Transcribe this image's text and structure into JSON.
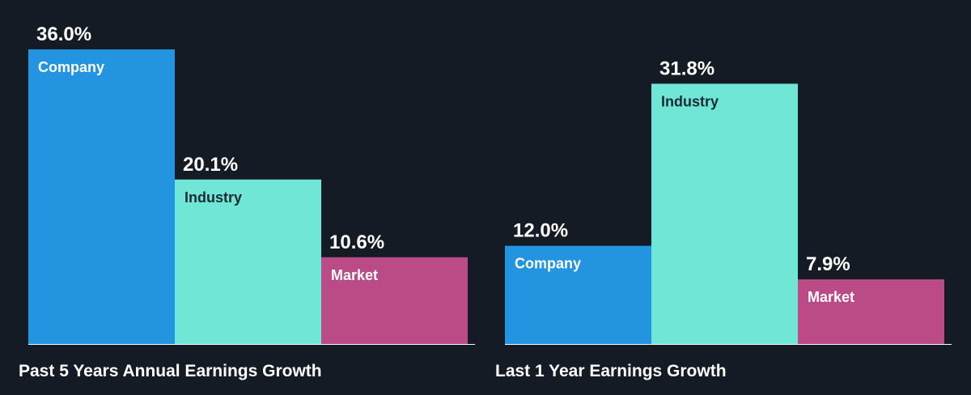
{
  "chart_data": [
    {
      "type": "bar",
      "title": "Past 5 Years Annual Earnings Growth",
      "categories": [
        "Company",
        "Industry",
        "Market"
      ],
      "values": [
        36.0,
        20.1,
        10.6
      ],
      "value_labels": [
        "36.0%",
        "20.1%",
        "10.6%"
      ],
      "colors": [
        "#2394e0",
        "#6fe6d6",
        "#bb4b86"
      ],
      "label_colors": [
        "#ffffff",
        "#1c2a33",
        "#ffffff"
      ],
      "unit": "%",
      "ylim": [
        0,
        36.0
      ]
    },
    {
      "type": "bar",
      "title": "Last 1 Year Earnings Growth",
      "categories": [
        "Company",
        "Industry",
        "Market"
      ],
      "values": [
        12.0,
        31.8,
        7.9
      ],
      "value_labels": [
        "12.0%",
        "31.8%",
        "7.9%"
      ],
      "colors": [
        "#2394e0",
        "#6fe6d6",
        "#bb4b86"
      ],
      "label_colors": [
        "#ffffff",
        "#1c2a33",
        "#ffffff"
      ],
      "unit": "%",
      "ylim": [
        0,
        36.0
      ]
    }
  ]
}
